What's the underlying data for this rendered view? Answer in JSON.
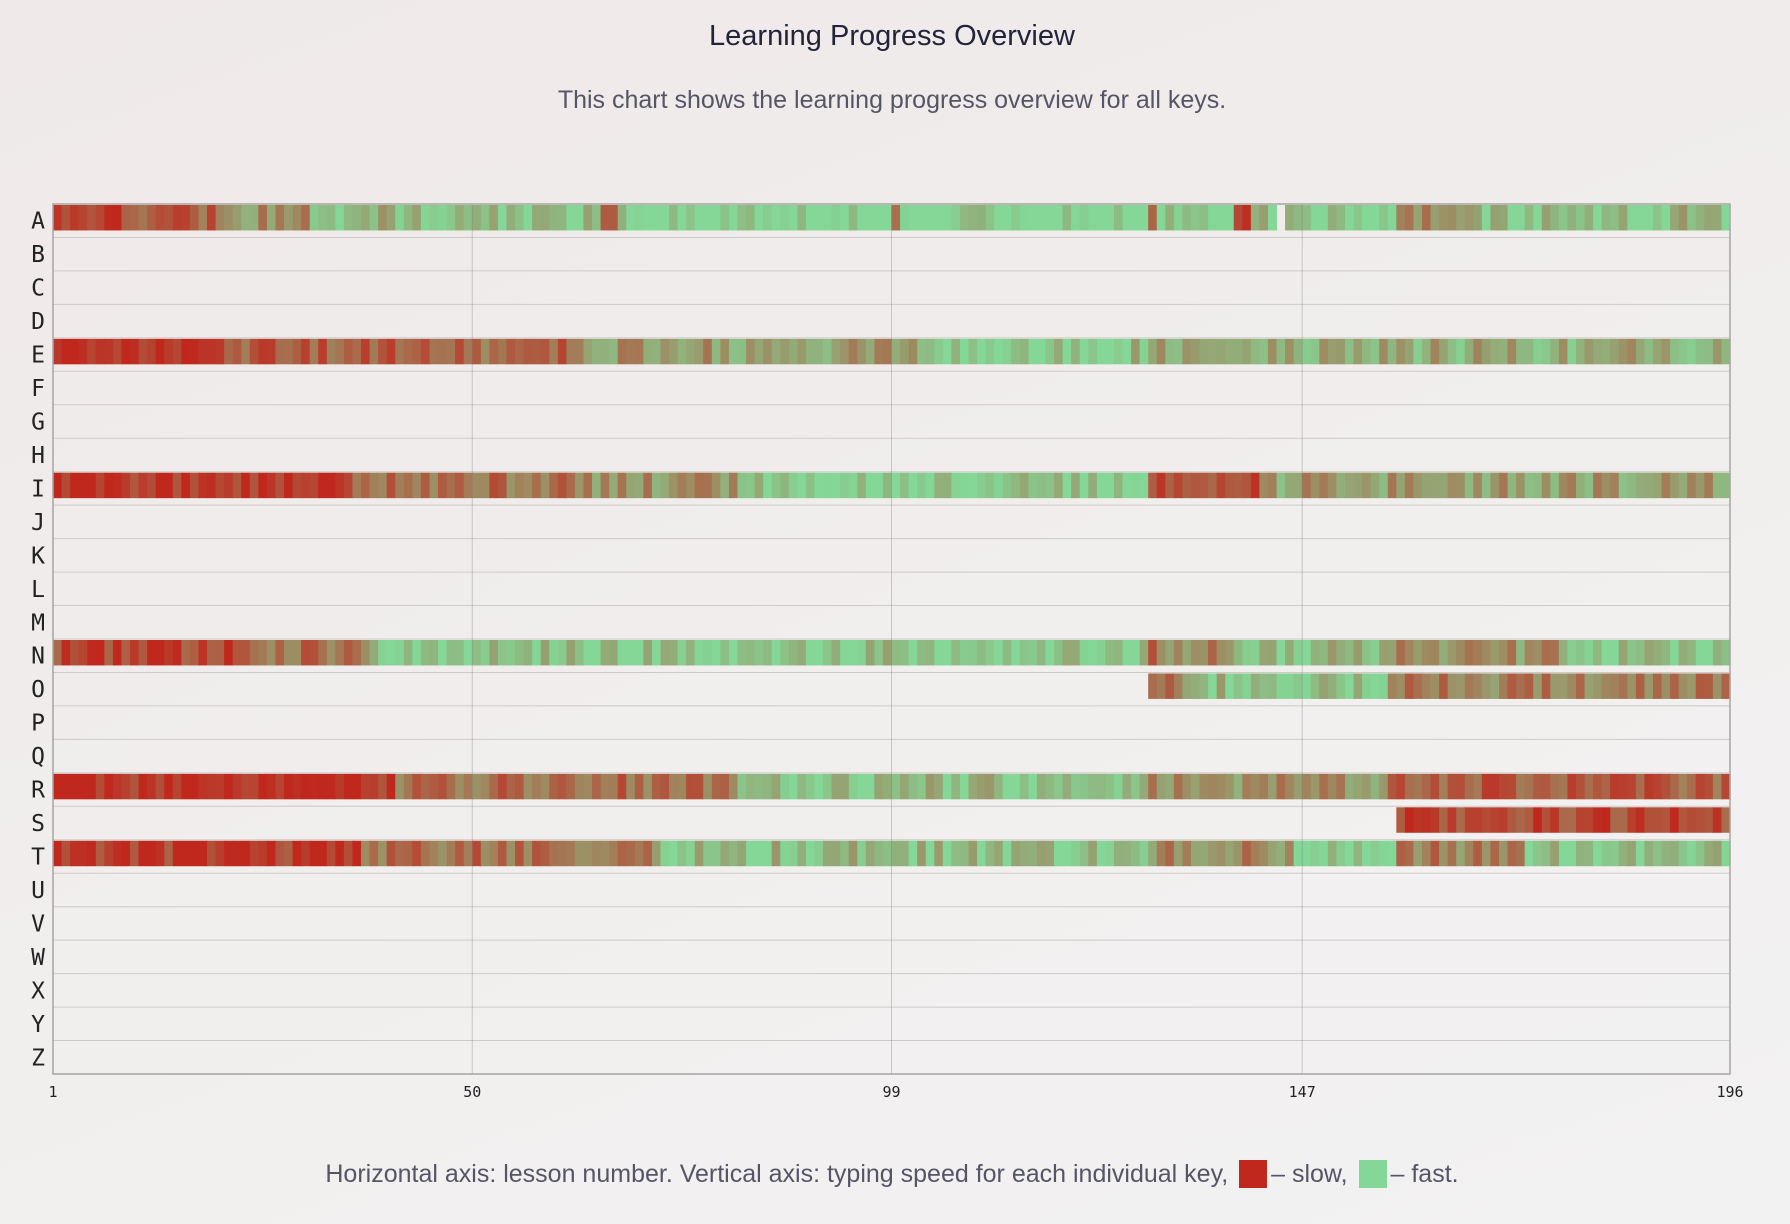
{
  "chart_data": {
    "type": "heatmap",
    "title": "Learning Progress Overview",
    "subtitle": "This chart shows the learning progress overview for all keys.",
    "x_axis": {
      "range": [
        1,
        196
      ],
      "ticks": [
        "1",
        "50",
        "99",
        "147",
        "196"
      ]
    },
    "y_axis": {
      "keys": [
        "A",
        "B",
        "C",
        "D",
        "E",
        "F",
        "G",
        "H",
        "I",
        "J",
        "K",
        "L",
        "M",
        "N",
        "O",
        "P",
        "Q",
        "R",
        "S",
        "T",
        "U",
        "V",
        "W",
        "X",
        "Y",
        "Z"
      ]
    },
    "color_scale": {
      "slow": "#c0281e",
      "fast": "#84d796"
    },
    "grid": true,
    "value_note": "speed per lesson: 0 = slow, 1 = fast (approximate reading of colors)",
    "series": [
      {
        "key": "A",
        "segments": [
          {
            "from": 1,
            "to": 8,
            "speed": 0.05
          },
          {
            "from": 9,
            "to": 20,
            "speed": 0.3
          },
          {
            "from": 21,
            "to": 30,
            "speed": 0.6
          },
          {
            "from": 31,
            "to": 45,
            "speed": 0.8
          },
          {
            "from": 46,
            "to": 64,
            "speed": 0.9
          },
          {
            "from": 65,
            "to": 66,
            "speed": 0.4
          },
          {
            "from": 67,
            "to": 98,
            "speed": 1.0
          },
          {
            "from": 99,
            "to": 99,
            "speed": 0.6
          },
          {
            "from": 100,
            "to": 128,
            "speed": 1.0
          },
          {
            "from": 129,
            "to": 129,
            "speed": 0.55
          },
          {
            "from": 130,
            "to": 138,
            "speed": 0.95
          },
          {
            "from": 139,
            "to": 140,
            "speed": 0.1
          },
          {
            "from": 141,
            "to": 143,
            "speed": 0.9
          },
          {
            "from": 145,
            "to": 157,
            "speed": 0.95
          },
          {
            "from": 158,
            "to": 166,
            "speed": 0.55
          },
          {
            "from": 167,
            "to": 196,
            "speed": 0.85
          }
        ]
      },
      {
        "key": "E",
        "segments": [
          {
            "from": 1,
            "to": 20,
            "speed": 0.05
          },
          {
            "from": 21,
            "to": 44,
            "speed": 0.3
          },
          {
            "from": 45,
            "to": 60,
            "speed": 0.35
          },
          {
            "from": 61,
            "to": 102,
            "speed": 0.65
          },
          {
            "from": 103,
            "to": 126,
            "speed": 0.95
          },
          {
            "from": 127,
            "to": 196,
            "speed": 0.75
          }
        ]
      },
      {
        "key": "I",
        "segments": [
          {
            "from": 1,
            "to": 35,
            "speed": 0.05
          },
          {
            "from": 36,
            "to": 60,
            "speed": 0.4
          },
          {
            "from": 61,
            "to": 80,
            "speed": 0.6
          },
          {
            "from": 81,
            "to": 128,
            "speed": 0.95
          },
          {
            "from": 129,
            "to": 141,
            "speed": 0.25
          },
          {
            "from": 142,
            "to": 196,
            "speed": 0.65
          }
        ]
      },
      {
        "key": "N",
        "segments": [
          {
            "from": 1,
            "to": 22,
            "speed": 0.15
          },
          {
            "from": 23,
            "to": 37,
            "speed": 0.4
          },
          {
            "from": 38,
            "to": 128,
            "speed": 0.9
          },
          {
            "from": 129,
            "to": 129,
            "speed": 0.1
          },
          {
            "from": 130,
            "to": 138,
            "speed": 0.55
          },
          {
            "from": 139,
            "to": 157,
            "speed": 0.85
          },
          {
            "from": 158,
            "to": 176,
            "speed": 0.6
          },
          {
            "from": 177,
            "to": 196,
            "speed": 0.92
          }
        ]
      },
      {
        "key": "O",
        "segments": [
          {
            "from": 129,
            "to": 132,
            "speed": 0.45
          },
          {
            "from": 133,
            "to": 156,
            "speed": 0.85
          },
          {
            "from": 157,
            "to": 196,
            "speed": 0.5
          }
        ]
      },
      {
        "key": "R",
        "segments": [
          {
            "from": 1,
            "to": 40,
            "speed": 0.05
          },
          {
            "from": 41,
            "to": 80,
            "speed": 0.4
          },
          {
            "from": 81,
            "to": 128,
            "speed": 0.85
          },
          {
            "from": 129,
            "to": 156,
            "speed": 0.6
          },
          {
            "from": 157,
            "to": 196,
            "speed": 0.3
          }
        ]
      },
      {
        "key": "S",
        "segments": [
          {
            "from": 158,
            "to": 196,
            "speed": 0.2
          }
        ]
      },
      {
        "key": "T",
        "segments": [
          {
            "from": 1,
            "to": 36,
            "speed": 0.1
          },
          {
            "from": 37,
            "to": 70,
            "speed": 0.4
          },
          {
            "from": 71,
            "to": 128,
            "speed": 0.85
          },
          {
            "from": 129,
            "to": 145,
            "speed": 0.55
          },
          {
            "from": 146,
            "to": 157,
            "speed": 0.95
          },
          {
            "from": 158,
            "to": 172,
            "speed": 0.5
          },
          {
            "from": 173,
            "to": 196,
            "speed": 0.9
          }
        ]
      }
    ]
  },
  "legend": {
    "prefix": "Horizontal axis: lesson number. Vertical axis: typing speed for each individual key,",
    "slow_label": "– slow,",
    "fast_label": "– fast."
  }
}
